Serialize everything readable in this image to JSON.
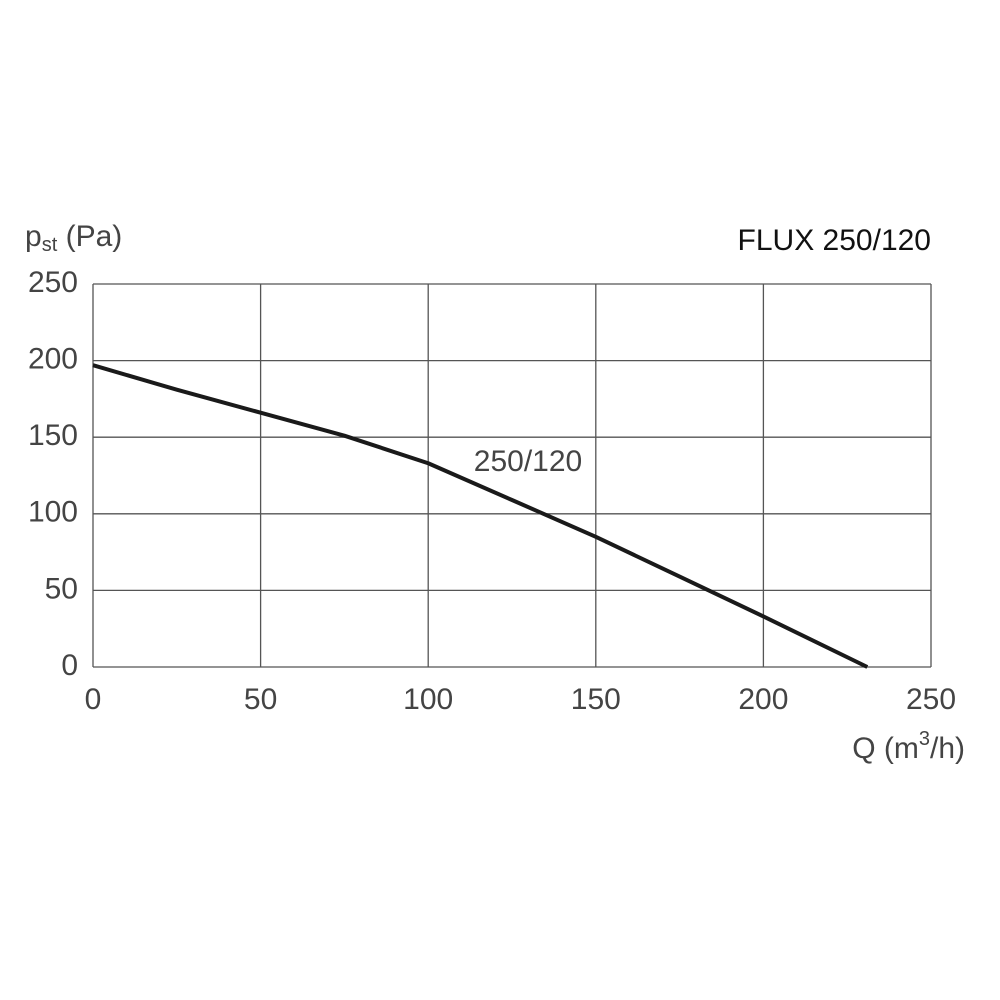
{
  "chart_data": {
    "type": "line",
    "title": "FLUX 250/120",
    "y_label": {
      "main": "p",
      "sub": "st",
      "rest": " (Pa)"
    },
    "x_label": {
      "main": "Q (m",
      "sup": "3",
      "rest": "/h)"
    },
    "x": [
      0,
      25,
      50,
      75,
      100,
      125,
      150,
      175,
      200,
      231
    ],
    "series": [
      {
        "name": "250/120",
        "color": "#1a1a1a",
        "values": [
          197,
          181,
          166,
          151,
          133,
          109,
          85,
          59,
          33,
          0
        ]
      }
    ],
    "xlim": [
      0,
      250
    ],
    "xticks": [
      0,
      50,
      100,
      150,
      200,
      250
    ],
    "ylim": [
      0,
      250
    ],
    "yticks": [
      0,
      50,
      100,
      150,
      200,
      250
    ],
    "grid": true
  }
}
